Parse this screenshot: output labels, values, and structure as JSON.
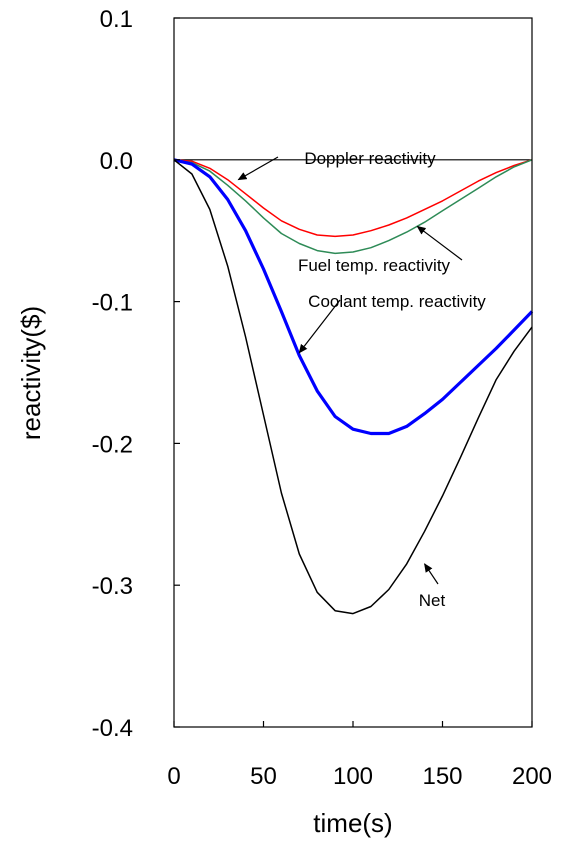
{
  "chart_data": {
    "type": "line",
    "xlabel": "time(s)",
    "ylabel": "reactivity($)",
    "xlim": [
      0,
      200
    ],
    "ylim": [
      -0.4,
      0.1
    ],
    "xticks": [
      0,
      50,
      100,
      150,
      200
    ],
    "xtick_labels": [
      "0",
      "50",
      "100",
      "150",
      "200"
    ],
    "yticks": [
      0.1,
      0.0,
      -0.1,
      -0.2,
      -0.3,
      -0.4
    ],
    "ytick_labels": [
      "0.1",
      "0.0",
      "-0.1",
      "-0.2",
      "-0.3",
      "-0.4"
    ],
    "grid": false,
    "legend": "none",
    "series": [
      {
        "name": "Doppler reactivity",
        "color": "#ff0000",
        "x": [
          0,
          10,
          20,
          30,
          40,
          50,
          60,
          70,
          80,
          90,
          100,
          110,
          120,
          130,
          140,
          150,
          160,
          170,
          180,
          190,
          200
        ],
        "y": [
          0.0,
          -0.001,
          -0.006,
          -0.014,
          -0.024,
          -0.034,
          -0.043,
          -0.049,
          -0.053,
          -0.054,
          -0.053,
          -0.05,
          -0.046,
          -0.041,
          -0.035,
          -0.029,
          -0.022,
          -0.015,
          -0.009,
          -0.004,
          0.0
        ]
      },
      {
        "name": "Fuel temp. reactivity",
        "color": "#2e8b57",
        "x": [
          0,
          10,
          20,
          30,
          40,
          50,
          60,
          70,
          80,
          90,
          100,
          110,
          120,
          130,
          140,
          150,
          160,
          170,
          180,
          190,
          200
        ],
        "y": [
          0.0,
          -0.002,
          -0.008,
          -0.018,
          -0.029,
          -0.041,
          -0.052,
          -0.059,
          -0.064,
          -0.066,
          -0.065,
          -0.062,
          -0.057,
          -0.051,
          -0.044,
          -0.036,
          -0.028,
          -0.02,
          -0.012,
          -0.005,
          0.0
        ]
      },
      {
        "name": "Coolant temp. reactivity",
        "color": "#0000ff",
        "x": [
          0,
          10,
          20,
          30,
          40,
          50,
          60,
          70,
          80,
          90,
          100,
          110,
          120,
          130,
          140,
          150,
          160,
          170,
          180,
          190,
          200
        ],
        "y": [
          0.0,
          -0.003,
          -0.012,
          -0.028,
          -0.05,
          -0.077,
          -0.107,
          -0.138,
          -0.163,
          -0.181,
          -0.19,
          -0.193,
          -0.193,
          -0.188,
          -0.179,
          -0.169,
          -0.157,
          -0.145,
          -0.133,
          -0.12,
          -0.107
        ]
      },
      {
        "name": "Net",
        "color": "#000000",
        "x": [
          0,
          10,
          20,
          30,
          40,
          50,
          60,
          70,
          80,
          90,
          100,
          110,
          120,
          130,
          140,
          150,
          160,
          170,
          180,
          190,
          200
        ],
        "y": [
          0.0,
          -0.01,
          -0.035,
          -0.075,
          -0.125,
          -0.18,
          -0.235,
          -0.278,
          -0.305,
          -0.318,
          -0.32,
          -0.315,
          -0.303,
          -0.285,
          -0.262,
          -0.237,
          -0.21,
          -0.182,
          -0.155,
          -0.135,
          -0.118
        ]
      }
    ],
    "annotations": [
      {
        "text": "Doppler reactivity",
        "series": "Doppler reactivity",
        "arrow_to": [
          36,
          -0.014
        ]
      },
      {
        "text": "Fuel temp. reactivity",
        "series": "Fuel temp. reactivity",
        "arrow_to": [
          136,
          -0.047
        ]
      },
      {
        "text": "Coolant temp. reactivity",
        "series": "Coolant temp. reactivity",
        "arrow_to": [
          70,
          -0.136
        ]
      },
      {
        "text": "Net",
        "series": "Net",
        "arrow_to": [
          140,
          -0.285
        ]
      }
    ],
    "zero_line": {
      "y": 0.0,
      "color": "#000000"
    }
  }
}
